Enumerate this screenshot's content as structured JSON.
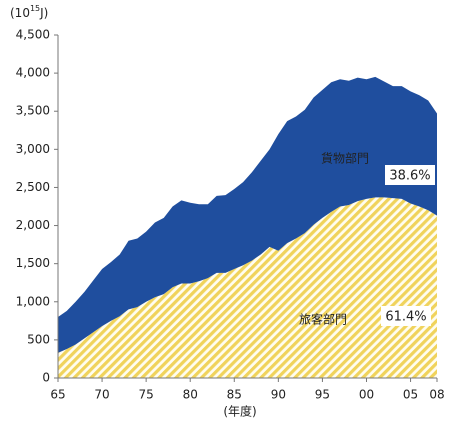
{
  "chart_data": {
    "type": "stacked-area",
    "unit_label": {
      "base": "(10",
      "exponent": "15",
      "suffix": "J)"
    },
    "x_label": "(年度)",
    "x": [
      1965,
      1966,
      1967,
      1968,
      1969,
      1970,
      1971,
      1972,
      1973,
      1974,
      1975,
      1976,
      1977,
      1978,
      1979,
      1980,
      1981,
      1982,
      1983,
      1984,
      1985,
      1986,
      1987,
      1988,
      1989,
      1990,
      1991,
      1992,
      1993,
      1994,
      1995,
      1996,
      1997,
      1998,
      1999,
      2000,
      2001,
      2002,
      2003,
      2004,
      2005,
      2006,
      2007,
      2008
    ],
    "series": [
      {
        "name": "旅客部門",
        "color": "#f0d35c",
        "pattern": "hatch",
        "values": [
          330,
          380,
          440,
          520,
          600,
          680,
          750,
          810,
          900,
          930,
          1000,
          1060,
          1100,
          1190,
          1240,
          1240,
          1270,
          1310,
          1380,
          1380,
          1430,
          1480,
          1540,
          1620,
          1720,
          1670,
          1770,
          1830,
          1900,
          2010,
          2100,
          2180,
          2250,
          2270,
          2320,
          2350,
          2370,
          2370,
          2360,
          2350,
          2290,
          2250,
          2200,
          2130
        ]
      },
      {
        "name": "貨物部門",
        "color": "#1f4e9e",
        "pattern": "solid",
        "values": [
          470,
          500,
          560,
          610,
          680,
          750,
          770,
          810,
          900,
          900,
          920,
          980,
          1000,
          1060,
          1090,
          1060,
          1010,
          970,
          1010,
          1020,
          1050,
          1090,
          1160,
          1230,
          1280,
          1530,
          1600,
          1600,
          1620,
          1670,
          1680,
          1700,
          1670,
          1630,
          1620,
          1570,
          1580,
          1520,
          1470,
          1480,
          1470,
          1460,
          1440,
          1340
        ]
      }
    ],
    "annotations": [
      "61.4%",
      "38.6%"
    ],
    "xlim": [
      1965,
      2008
    ],
    "xticks": [
      {
        "value": 1965,
        "label": "65"
      },
      {
        "value": 1970,
        "label": "70"
      },
      {
        "value": 1975,
        "label": "75"
      },
      {
        "value": 1980,
        "label": "80"
      },
      {
        "value": 1985,
        "label": "85"
      },
      {
        "value": 1990,
        "label": "90"
      },
      {
        "value": 1995,
        "label": "95"
      },
      {
        "value": 2000,
        "label": "00"
      },
      {
        "value": 2005,
        "label": "05"
      },
      {
        "value": 2008,
        "label": "08"
      }
    ],
    "ylim": [
      0,
      4500
    ],
    "yticks": [
      0,
      500,
      {
        "value": 1000,
        "label": "1,000"
      },
      {
        "value": 1500,
        "label": "1,500"
      },
      {
        "value": 2000,
        "label": "2,000"
      },
      {
        "value": 2500,
        "label": "2,500"
      },
      {
        "value": 3000,
        "label": "3,000"
      },
      {
        "value": 3500,
        "label": "3,500"
      },
      {
        "value": 4000,
        "label": "4,000"
      },
      {
        "value": 4500,
        "label": "4,500"
      }
    ],
    "grid": false
  }
}
